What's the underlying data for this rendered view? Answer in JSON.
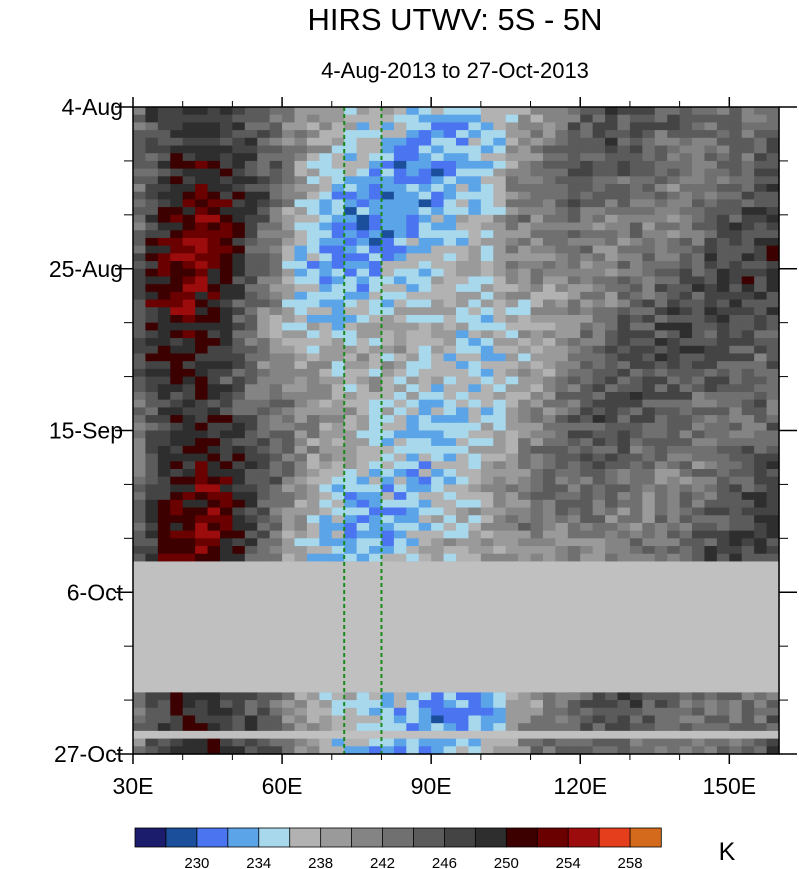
{
  "chart_data": {
    "type": "heatmap",
    "title": "HIRS UTWV: 5S - 5N",
    "subtitle": "4-Aug-2013 to 27-Oct-2013",
    "x_range": [
      30,
      160
    ],
    "x_ticks": [
      {
        "value": 30,
        "label": "30E"
      },
      {
        "value": 60,
        "label": "60E"
      },
      {
        "value": 90,
        "label": "90E"
      },
      {
        "value": 120,
        "label": "120E"
      },
      {
        "value": 150,
        "label": "150E"
      }
    ],
    "y_range": [
      "2013-08-04",
      "2013-10-27"
    ],
    "y_ticks": [
      {
        "value": "2013-08-04",
        "label": "4-Aug"
      },
      {
        "value": "2013-08-25",
        "label": "25-Aug"
      },
      {
        "value": "2013-09-15",
        "label": "15-Sep"
      },
      {
        "value": "2013-10-06",
        "label": "6-Oct"
      },
      {
        "value": "2013-10-27",
        "label": "27-Oct"
      }
    ],
    "reference_lines_x": [
      72.5,
      80
    ],
    "reference_line_color": "#1a8a1a",
    "missing_data_color": "#c0c0c0",
    "missing_periods": [
      [
        "2013-10-02",
        "2013-10-19"
      ],
      [
        "2013-10-24",
        "2013-10-25"
      ]
    ],
    "colorbar": {
      "unit": "K",
      "levels_labeled": [
        "230",
        "234",
        "238",
        "242",
        "246",
        "250",
        "254",
        "258"
      ],
      "colors": [
        "#1c1c6c",
        "#1b4f9c",
        "#4a74f0",
        "#5ba4e8",
        "#a8d8ec",
        "#b2b2b2",
        "#9a9a9a",
        "#848484",
        "#707070",
        "#5b5b5b",
        "#444444",
        "#2e2e2e",
        "#3c0000",
        "#6a0000",
        "#9c0c0c",
        "#e43e1c",
        "#d46a1c"
      ]
    },
    "profile": [
      {
        "lon": 30,
        "v": 243
      },
      {
        "lon": 33,
        "v": 247
      },
      {
        "lon": 38,
        "v": 250
      },
      {
        "lon": 44,
        "v": 251
      },
      {
        "lon": 50,
        "v": 248
      },
      {
        "lon": 55,
        "v": 244
      },
      {
        "lon": 60,
        "v": 241
      },
      {
        "lon": 66,
        "v": 238
      },
      {
        "lon": 72,
        "v": 236
      },
      {
        "lon": 80,
        "v": 236
      },
      {
        "lon": 90,
        "v": 236
      },
      {
        "lon": 100,
        "v": 237
      },
      {
        "lon": 110,
        "v": 240
      },
      {
        "lon": 120,
        "v": 243
      },
      {
        "lon": 130,
        "v": 244
      },
      {
        "lon": 140,
        "v": 244
      },
      {
        "lon": 150,
        "v": 245
      },
      {
        "lon": 160,
        "v": 246
      }
    ]
  }
}
